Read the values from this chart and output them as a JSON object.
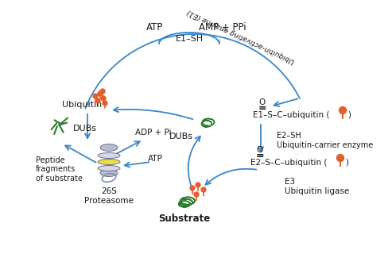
{
  "bg_color": "#ffffff",
  "arrow_color": "#3a87c8",
  "text_color": "#1a1a1a",
  "orange_color": "#e06030",
  "green_color": "#2d7d2d",
  "labels": {
    "ATP_top": "ATP",
    "AMP_PPi": "AMP + PPi",
    "E1SH_top": "E1–SH",
    "ubiq_activating": "Ubiquitin-activating enzyme (E1)",
    "ubiquitin": "Ubiquitin",
    "DUBs_left": "DUBs",
    "ADP_Pi": "ADP + Pi",
    "ATP_mid": "ATP",
    "peptide": "Peptide\nfragments\nof substrate",
    "proteasome": "26S\nProteasome",
    "DUBs_mid": "DUBs",
    "substrate_label": "Substrate",
    "E2SH": "E2–SH\nUbiquitin-carrier enzyme",
    "E3": "E3\nUbiquitin ligase"
  }
}
